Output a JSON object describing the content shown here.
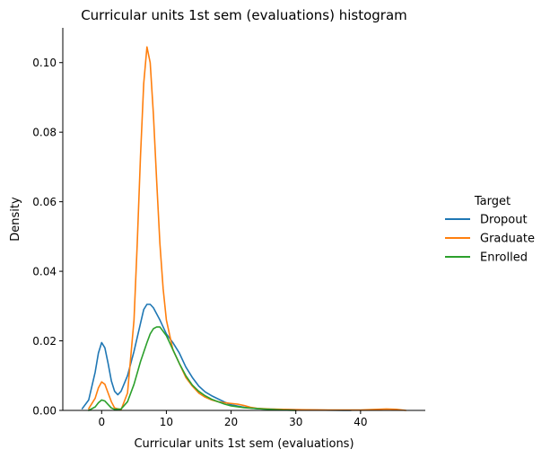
{
  "chart_data": {
    "type": "line",
    "title": "Curricular units 1st sem (evaluations) histogram",
    "xlabel": "Curricular units 1st sem (evaluations)",
    "ylabel": "Density",
    "xlim": [
      -6,
      50
    ],
    "ylim": [
      0,
      0.11
    ],
    "xticks": [
      0,
      10,
      20,
      30,
      40
    ],
    "yticks": [
      0.0,
      0.02,
      0.04,
      0.06,
      0.08,
      0.1
    ],
    "xtick_labels": [
      "0",
      "10",
      "20",
      "30",
      "40"
    ],
    "ytick_labels": [
      "0.00",
      "0.02",
      "0.04",
      "0.06",
      "0.08",
      "0.10"
    ],
    "grid": false,
    "legend": {
      "title": "Target",
      "placement": "right"
    },
    "series": [
      {
        "name": "Dropout",
        "color": "#1f77b4",
        "x": [
          -3,
          -2,
          -1,
          -0.5,
          0,
          0.5,
          1,
          1.5,
          2,
          2.5,
          3,
          4,
          5,
          6,
          6.5,
          7,
          7.5,
          8,
          9,
          10,
          11,
          12,
          13,
          14,
          15,
          16,
          17,
          18,
          19,
          20,
          22,
          24,
          27,
          30,
          33,
          36,
          38.5
        ],
        "y": [
          0.0005,
          0.003,
          0.011,
          0.0165,
          0.0195,
          0.018,
          0.0135,
          0.0085,
          0.0055,
          0.0045,
          0.0055,
          0.01,
          0.017,
          0.025,
          0.029,
          0.0305,
          0.0305,
          0.0295,
          0.026,
          0.022,
          0.0195,
          0.0165,
          0.0125,
          0.0095,
          0.007,
          0.0053,
          0.0042,
          0.0033,
          0.0024,
          0.0016,
          0.0009,
          0.0005,
          0.0003,
          0.0002,
          0.0001,
          3e-05,
          0
        ]
      },
      {
        "name": "Graduate",
        "color": "#ff7f0e",
        "x": [
          -2,
          -1,
          -0.5,
          0,
          0.5,
          1,
          1.5,
          2,
          3,
          4,
          5,
          5.5,
          6,
          6.5,
          7,
          7.5,
          8,
          8.5,
          9,
          9.5,
          10,
          11,
          12,
          13,
          14,
          15,
          16,
          17,
          18,
          19,
          20,
          21,
          22,
          23,
          24,
          26,
          28,
          30,
          35,
          40,
          44,
          45.5,
          47
        ],
        "y": [
          0.0005,
          0.0035,
          0.0065,
          0.0082,
          0.0075,
          0.005,
          0.0025,
          0.0007,
          0.0002,
          0.005,
          0.026,
          0.048,
          0.073,
          0.094,
          0.1045,
          0.1,
          0.085,
          0.066,
          0.048,
          0.035,
          0.026,
          0.0175,
          0.0135,
          0.0095,
          0.007,
          0.005,
          0.0038,
          0.003,
          0.0025,
          0.0022,
          0.002,
          0.0018,
          0.0014,
          0.0009,
          0.0006,
          0.0004,
          0.0003,
          0.0002,
          0.0001,
          0.0001,
          0.0004,
          0.0003,
          0
        ]
      },
      {
        "name": "Enrolled",
        "color": "#2ca02c",
        "x": [
          -2,
          -1,
          -0.5,
          0,
          0.5,
          1,
          1.5,
          2,
          3,
          4,
          5,
          6,
          7,
          7.5,
          8,
          8.5,
          9,
          10,
          11,
          12,
          13,
          14,
          15,
          16,
          17,
          18,
          19,
          20,
          22,
          25,
          28,
          30
        ],
        "y": [
          0,
          0.001,
          0.0022,
          0.003,
          0.0027,
          0.0017,
          0.0007,
          0.0003,
          0.0004,
          0.0025,
          0.0075,
          0.014,
          0.0195,
          0.022,
          0.0235,
          0.024,
          0.024,
          0.0215,
          0.0175,
          0.0135,
          0.01,
          0.0073,
          0.0055,
          0.0042,
          0.0032,
          0.0025,
          0.0018,
          0.0013,
          0.0008,
          0.0004,
          0.0001,
          0
        ]
      }
    ]
  }
}
